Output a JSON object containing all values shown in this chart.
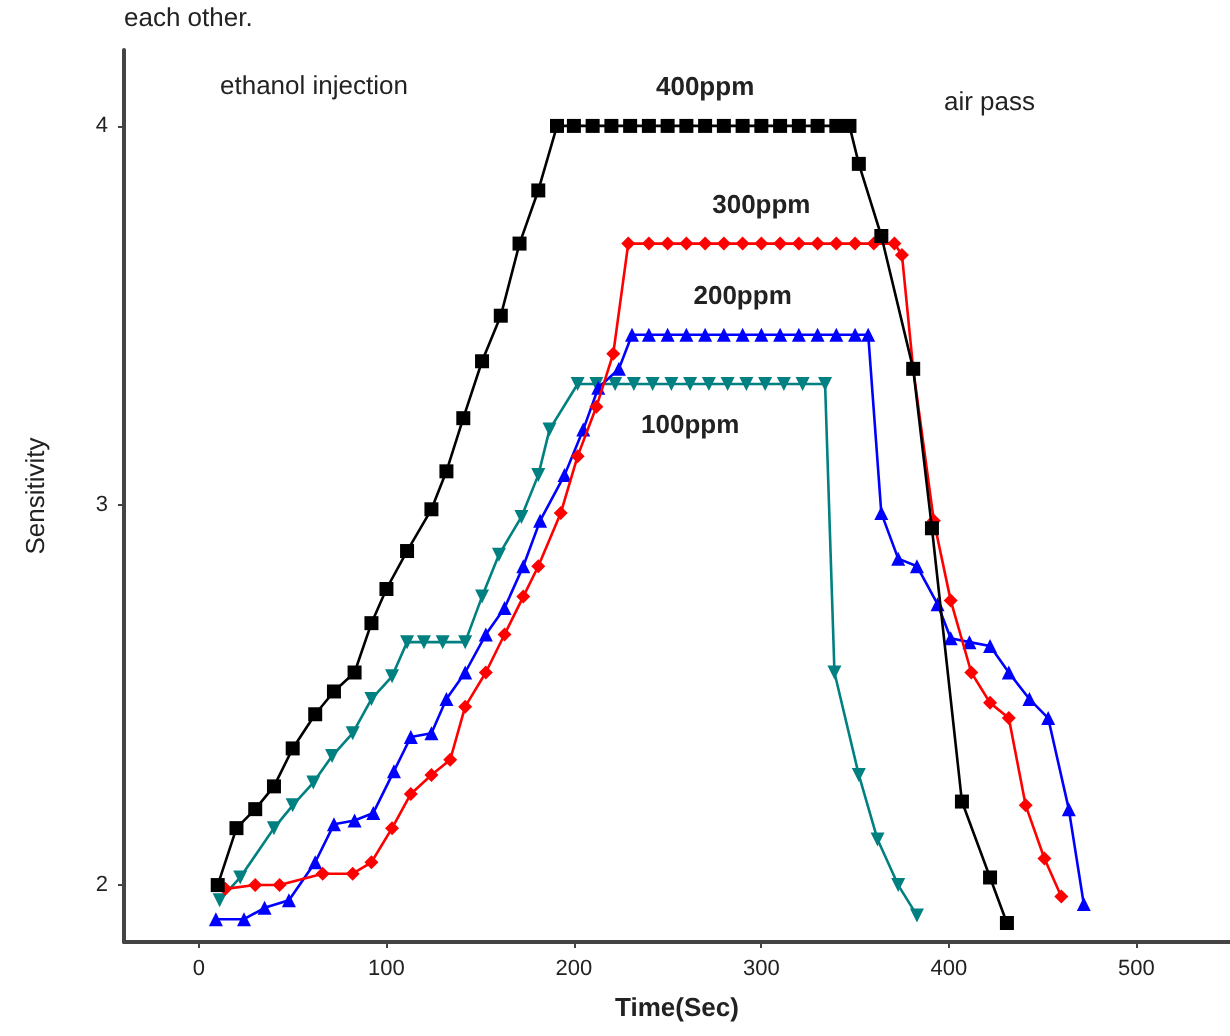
{
  "chart_data": {
    "type": "line",
    "xlabel": "Time(Sec)",
    "ylabel": "Sensitivity",
    "xlim": [
      -40,
      550
    ],
    "ylim": [
      1.85,
      4.2
    ],
    "xticks": [
      0,
      100,
      200,
      300,
      400,
      500
    ],
    "yticks": [
      2,
      3,
      4
    ],
    "grid": false,
    "legend": false,
    "annotations": [
      "each other.",
      "ethanol injection",
      "air pass"
    ],
    "series": [
      {
        "name": "400ppm",
        "color": "#000000",
        "marker": "square",
        "x": [
          10,
          20,
          30,
          40,
          50,
          62,
          72,
          83,
          92,
          100,
          111,
          124,
          132,
          141,
          151,
          161,
          171,
          181,
          191,
          200,
          210,
          220,
          230,
          240,
          250,
          260,
          270,
          280,
          290,
          300,
          310,
          320,
          330,
          340,
          347,
          352,
          364,
          381,
          391,
          407,
          422,
          431
        ],
        "values": [
          2.0,
          2.15,
          2.2,
          2.26,
          2.36,
          2.45,
          2.51,
          2.56,
          2.69,
          2.78,
          2.88,
          2.99,
          3.09,
          3.23,
          3.38,
          3.5,
          3.69,
          3.83,
          4.0,
          4.0,
          4.0,
          4.0,
          4.0,
          4.0,
          4.0,
          4.0,
          4.0,
          4.0,
          4.0,
          4.0,
          4.0,
          4.0,
          4.0,
          4.0,
          4.0,
          3.9,
          3.71,
          3.36,
          2.94,
          2.22,
          2.02,
          1.9
        ]
      },
      {
        "name": "300ppm",
        "color": "#ff0000",
        "marker": "diamond",
        "x": [
          14,
          30,
          43,
          66,
          82,
          92,
          103,
          113,
          124,
          134,
          142,
          153,
          163,
          173,
          181,
          193,
          202,
          212,
          221,
          229,
          240,
          250,
          260,
          270,
          280,
          290,
          300,
          310,
          320,
          330,
          340,
          350,
          360,
          371,
          375,
          381,
          392,
          401,
          412,
          422,
          432,
          441,
          451,
          460
        ],
        "values": [
          1.99,
          2.0,
          2.0,
          2.03,
          2.03,
          2.06,
          2.15,
          2.24,
          2.29,
          2.33,
          2.47,
          2.56,
          2.66,
          2.76,
          2.84,
          2.98,
          3.13,
          3.26,
          3.4,
          3.69,
          3.69,
          3.69,
          3.69,
          3.69,
          3.69,
          3.69,
          3.69,
          3.69,
          3.69,
          3.69,
          3.69,
          3.69,
          3.69,
          3.69,
          3.66,
          3.36,
          2.96,
          2.75,
          2.56,
          2.48,
          2.44,
          2.21,
          2.07,
          1.97
        ]
      },
      {
        "name": "200ppm",
        "color": "#0000ff",
        "marker": "triangle",
        "x": [
          9,
          24,
          35,
          48,
          62,
          72,
          83,
          93,
          104,
          113,
          124,
          132,
          142,
          153,
          163,
          173,
          182,
          195,
          205,
          213,
          224,
          231,
          240,
          250,
          260,
          270,
          280,
          290,
          300,
          310,
          320,
          330,
          340,
          350,
          357,
          364,
          373,
          383,
          394,
          401,
          411,
          422,
          432,
          443,
          453,
          464,
          472
        ],
        "values": [
          1.91,
          1.91,
          1.94,
          1.96,
          2.06,
          2.16,
          2.17,
          2.19,
          2.3,
          2.39,
          2.4,
          2.49,
          2.56,
          2.66,
          2.73,
          2.84,
          2.96,
          3.08,
          3.2,
          3.31,
          3.36,
          3.45,
          3.45,
          3.45,
          3.45,
          3.45,
          3.45,
          3.45,
          3.45,
          3.45,
          3.45,
          3.45,
          3.45,
          3.45,
          3.45,
          2.98,
          2.86,
          2.84,
          2.74,
          2.65,
          2.64,
          2.63,
          2.56,
          2.49,
          2.44,
          2.2,
          1.95
        ]
      },
      {
        "name": "100ppm",
        "color": "#008080",
        "marker": "triangle-down",
        "x": [
          11,
          22,
          40,
          50,
          61,
          71,
          82,
          92,
          103,
          111,
          120,
          130,
          142,
          151,
          160,
          172,
          181,
          187,
          202,
          212,
          222,
          232,
          242,
          252,
          262,
          272,
          282,
          292,
          302,
          312,
          322,
          334,
          339,
          352,
          362,
          373,
          383
        ],
        "values": [
          1.96,
          2.02,
          2.15,
          2.21,
          2.27,
          2.34,
          2.4,
          2.49,
          2.55,
          2.64,
          2.64,
          2.64,
          2.64,
          2.76,
          2.87,
          2.97,
          3.08,
          3.2,
          3.32,
          3.32,
          3.32,
          3.32,
          3.32,
          3.32,
          3.32,
          3.32,
          3.32,
          3.32,
          3.32,
          3.32,
          3.32,
          3.32,
          2.56,
          2.29,
          2.12,
          2.0,
          1.92
        ]
      }
    ]
  }
}
